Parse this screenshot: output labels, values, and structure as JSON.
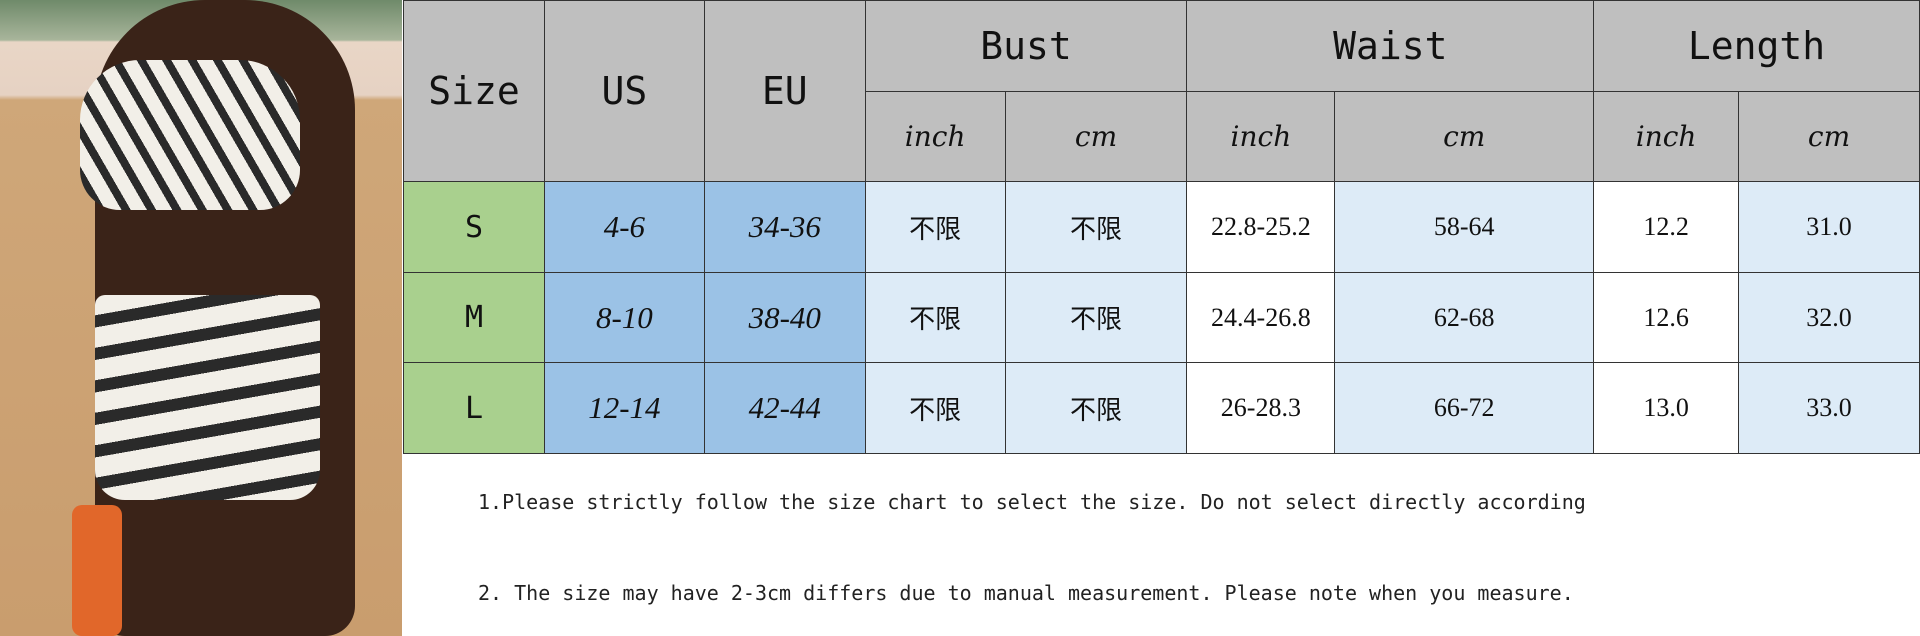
{
  "headers": {
    "size": "Size",
    "us": "US",
    "eu": "EU",
    "bust": "Bust",
    "waist": "Waist",
    "length": "Length",
    "inch": "inch",
    "cm": "cm"
  },
  "rows": [
    {
      "size": "S",
      "us": "4-6",
      "eu": "34-36",
      "bust_inch": "不限",
      "bust_cm": "不限",
      "waist_inch": "22.8-25.2",
      "waist_cm": "58-64",
      "length_inch": "12.2",
      "length_cm": "31.0"
    },
    {
      "size": "M",
      "us": "8-10",
      "eu": "38-40",
      "bust_inch": "不限",
      "bust_cm": "不限",
      "waist_inch": "24.4-26.8",
      "waist_cm": "62-68",
      "length_inch": "12.6",
      "length_cm": "32.0"
    },
    {
      "size": "L",
      "us": "12-14",
      "eu": "42-44",
      "bust_inch": "不限",
      "bust_cm": "不限",
      "waist_inch": "26-28.3",
      "waist_cm": "66-72",
      "length_inch": "13.0",
      "length_cm": "33.0"
    }
  ],
  "notes": [
    "1.Please strictly follow the size chart to select the size. Do not select directly according",
    "2. The size may have 2-3cm differs due to manual measurement. Please note when you measure."
  ],
  "colors": {
    "header": "#bfbfbf",
    "size_col": "#a9d08e",
    "us_eu": "#9bc2e6",
    "light": "#ddebf7"
  }
}
